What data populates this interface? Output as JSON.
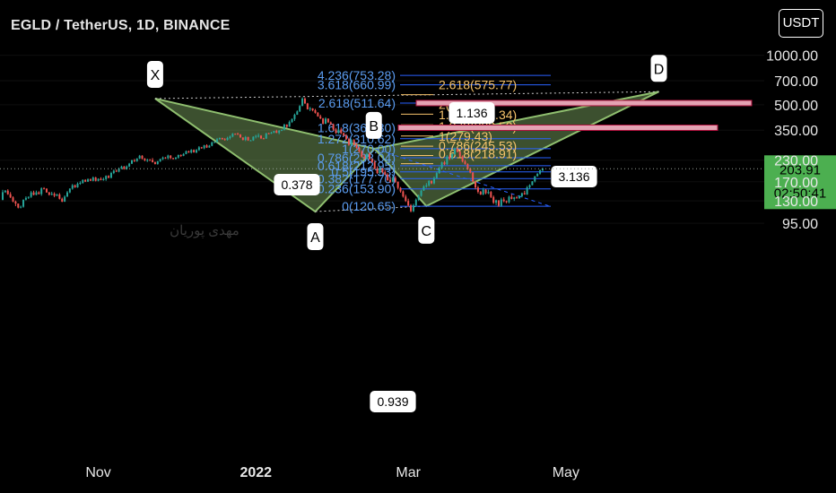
{
  "header": {
    "title": "EGLD / TetherUS, 1D, BINANCE",
    "unit_button": "USDT"
  },
  "watermark": "مهدی پوریان",
  "colors": {
    "background": "#000000",
    "pattern_fill": "#8fbf6f",
    "bull_candle": "#26a69a",
    "bear_candle": "#ef5350",
    "fib_blue_line": "#2962ff",
    "fib_blue_text": "#5b9cf0",
    "fib_gold_text": "#f6c36b",
    "zone_fill": "#e3a3b3",
    "zone_border": "#b0123f",
    "price_tag": "#4caf50"
  },
  "chart_data": {
    "type": "candlestick",
    "pair": "EGLD / TetherUS",
    "timeframe": "1D",
    "exchange": "BINANCE",
    "y_scale": "log",
    "yaxis_ticks": [
      "1000.00",
      "700.00",
      "500.00",
      "350.00",
      "230.00",
      "170.00",
      "130.00",
      "95.00"
    ],
    "xaxis_ticks": [
      "Nov",
      "2022",
      "Mar",
      "May"
    ],
    "last_price": "203.91",
    "countdown": "02:50:41",
    "pattern_points": [
      {
        "label": "X",
        "date": "2021-11-23",
        "price": 545
      },
      {
        "label": "A",
        "date": "2022-01-24",
        "price": 112
      },
      {
        "label": "B",
        "date": "2022-02-16",
        "price": 270
      },
      {
        "label": "C",
        "date": "2022-03-08",
        "price": 121
      },
      {
        "label": "D",
        "date": "2022-06-06",
        "price": 600
      }
    ],
    "pattern_ratios": [
      {
        "label": "0.378"
      },
      {
        "label": "0.939"
      },
      {
        "label": "3.136"
      },
      {
        "label": "1.136"
      }
    ],
    "fib_retracement_xa": [
      "4.236(753.28)",
      "3.618(660.99)",
      "2.618(511.64)",
      "1.618(362.30)",
      "1.272(310.62)",
      "1(270.00)",
      "0.786(238.04)",
      "0.618(212.95)",
      "0.5(195.33)",
      "0.382(177.70)",
      "0.236(153.90)",
      "0(120.65)"
    ],
    "fib_extension_bc": [
      "2.618(575.77)",
      "2(437.86)",
      "1.618(377.34)",
      "1.272(322.52)",
      "1(279.43)",
      "0.786(245.53)",
      "0.618(218.91)"
    ],
    "zones": [
      {
        "name": "upper",
        "price": 511.64
      },
      {
        "name": "lower",
        "price": 362.3
      }
    ],
    "candles": [
      [
        132.1,
        151.9,
        131.1,
        146.9
      ],
      [
        146.9,
        151.4,
        145.6,
        150.1
      ],
      [
        150.1,
        153.1,
        141.5,
        142.9
      ],
      [
        142.9,
        147.1,
        135.4,
        136.6
      ],
      [
        136.6,
        138.7,
        127.6,
        128.9
      ],
      [
        128.9,
        130.7,
        120.9,
        125.3
      ],
      [
        125.3,
        125.4,
        117.1,
        118.4
      ],
      [
        118.4,
        121.8,
        117.1,
        119.9
      ],
      [
        119.9,
        132.6,
        118.3,
        132.3
      ],
      [
        132.3,
        138.6,
        130.7,
        135.6
      ],
      [
        135.6,
        138.5,
        133.6,
        137.6
      ],
      [
        137.6,
        149.3,
        135.6,
        146.5
      ],
      [
        146.5,
        150.0,
        140.6,
        141.5
      ],
      [
        141.5,
        150.2,
        140.7,
        146.6
      ],
      [
        146.6,
        148.8,
        142.2,
        143.2
      ],
      [
        143.2,
        157.2,
        139.7,
        154.9
      ],
      [
        154.9,
        157.6,
        153.2,
        154.6
      ],
      [
        154.6,
        154.7,
        146.1,
        146.4
      ],
      [
        146.4,
        147.7,
        140.2,
        141.8
      ],
      [
        141.8,
        147.8,
        140.6,
        143.8
      ],
      [
        143.8,
        146.8,
        136.9,
        139.7
      ],
      [
        139.7,
        143.8,
        139.0,
        142.3
      ],
      [
        142.3,
        145.1,
        132.7,
        134.0
      ],
      [
        134.0,
        136.2,
        127.9,
        128.7
      ],
      [
        128.7,
        140.6,
        128.2,
        137.9
      ],
      [
        137.9,
        149.3,
        137.7,
        146.5
      ],
      [
        146.5,
        155.3,
        144.8,
        154.3
      ],
      [
        154.3,
        164.8,
        152.1,
        161.9
      ],
      [
        161.9,
        163.5,
        156.0,
        157.2
      ],
      [
        157.2,
        168.6,
        156.2,
        165.6
      ],
      [
        165.6,
        171.2,
        162.9,
        167.4
      ],
      [
        167.4,
        175.8,
        165.4,
        174.3
      ],
      [
        174.3,
        176.2,
        169.3,
        170.5
      ],
      [
        170.5,
        178.4,
        169.5,
        175.8
      ],
      [
        175.8,
        178.0,
        172.0,
        172.4
      ],
      [
        172.4,
        183.1,
        171.1,
        180.4
      ],
      [
        180.4,
        182.3,
        170.8,
        172.3
      ],
      [
        172.3,
        178.4,
        171.0,
        177.0
      ],
      [
        177.0,
        181.0,
        173.4,
        173.9
      ],
      [
        173.9,
        180.3,
        172.5,
        176.4
      ],
      [
        176.4,
        186.0,
        172.3,
        184.5
      ],
      [
        184.5,
        186.4,
        178.4,
        179.9
      ],
      [
        179.9,
        195.6,
        178.0,
        192.2
      ],
      [
        192.2,
        201.8,
        189.3,
        198.4
      ],
      [
        198.4,
        202.1,
        194.8,
        196.0
      ],
      [
        196.0,
        207.5,
        194.0,
        204.2
      ],
      [
        204.2,
        213.0,
        202.8,
        210.4
      ],
      [
        210.4,
        212.3,
        201.7,
        202.9
      ],
      [
        202.9,
        213.6,
        201.4,
        210.6
      ],
      [
        210.6,
        221.3,
        208.8,
        219.1
      ],
      [
        219.1,
        231.4,
        218.0,
        229.6
      ],
      [
        229.6,
        234.1,
        224.1,
        226.8
      ],
      [
        226.8,
        236.8,
        224.7,
        235.3
      ],
      [
        235.3,
        247.5,
        233.6,
        244.8
      ],
      [
        244.8,
        246.6,
        232.4,
        234.9
      ],
      [
        234.9,
        237.1,
        226.5,
        229.7
      ],
      [
        229.7,
        234.9,
        224.2,
        230.6
      ],
      [
        230.6,
        234.2,
        228.1,
        230.5
      ],
      [
        230.5,
        237.1,
        222.7,
        224.0
      ],
      [
        224.0,
        225.5,
        216.6,
        218.1
      ],
      [
        218.1,
        227.6,
        215.9,
        226.5
      ],
      [
        226.5,
        235.2,
        224.2,
        233.7
      ],
      [
        233.7,
        242.0,
        230.2,
        238.7
      ],
      [
        238.7,
        240.4,
        234.1,
        236.7
      ],
      [
        236.7,
        248.4,
        232.5,
        245.4
      ],
      [
        245.4,
        246.7,
        233.3,
        236.8
      ],
      [
        236.8,
        237.8,
        232.3,
        234.5
      ],
      [
        234.5,
        240.4,
        232.1,
        238.6
      ],
      [
        238.6,
        248.8,
        234.8,
        247.2
      ],
      [
        247.2,
        249.4,
        240.6,
        244.5
      ],
      [
        244.5,
        253.9,
        243.3,
        250.5
      ],
      [
        250.5,
        263.3,
        249.9,
        260.5
      ],
      [
        260.5,
        263.2,
        254.4,
        256.2
      ],
      [
        256.2,
        268.6,
        252.6,
        265.5
      ],
      [
        265.5,
        267.5,
        255.3,
        256.7
      ],
      [
        256.7,
        268.7,
        253.5,
        265.3
      ],
      [
        265.3,
        280.2,
        261.8,
        275.3
      ],
      [
        275.3,
        277.1,
        270.0,
        271.8
      ],
      [
        271.8,
        285.0,
        268.1,
        283.1
      ],
      [
        283.1,
        287.3,
        272.8,
        274.6
      ],
      [
        274.6,
        284.5,
        273.8,
        281.4
      ],
      [
        281.4,
        298.9,
        279.5,
        294.9
      ],
      [
        294.9,
        300.0,
        292.3,
        296.7
      ],
      [
        296.7,
        314.1,
        294.3,
        308.3
      ],
      [
        308.3,
        316.1,
        306.5,
        313.7
      ],
      [
        313.7,
        315.1,
        306.4,
        308.6
      ],
      [
        308.6,
        313.1,
        302.6,
        305.5
      ],
      [
        305.5,
        319.2,
        302.6,
        313.6
      ],
      [
        313.6,
        325.1,
        307.3,
        320.0
      ],
      [
        320.0,
        336.5,
        316.8,
        333.0
      ],
      [
        333.0,
        334.6,
        328.1,
        332.9
      ],
      [
        332.9,
        338.3,
        327.7,
        330.0
      ],
      [
        330.0,
        331.3,
        314.6,
        316.1
      ],
      [
        316.1,
        316.3,
        303.3,
        305.5
      ],
      [
        305.5,
        322.9,
        300.4,
        317.9
      ],
      [
        317.9,
        319.4,
        301.4,
        303.2
      ],
      [
        303.2,
        305.4,
        300.4,
        303.6
      ],
      [
        303.6,
        321.1,
        301.4,
        319.2
      ],
      [
        319.2,
        328.1,
        311.8,
        322.9
      ],
      [
        322.9,
        334.6,
        315.8,
        324.1
      ],
      [
        324.1,
        326.5,
        309.3,
        312.5
      ],
      [
        312.5,
        314.5,
        308.1,
        311.3
      ],
      [
        311.3,
        336.7,
        309.8,
        335.4
      ],
      [
        335.4,
        337.4,
        330.8,
        333.5
      ],
      [
        333.5,
        342.3,
        332.0,
        337.7
      ],
      [
        337.7,
        346.7,
        335.8,
        346.2
      ],
      [
        346.2,
        352.2,
        336.0,
        337.3
      ],
      [
        337.3,
        351.1,
        330.8,
        347.1
      ],
      [
        347.1,
        353.3,
        345.7,
        352.1
      ],
      [
        352.1,
        383.1,
        348.7,
        378.3
      ],
      [
        378.3,
        380.1,
        362.4,
        367.2
      ],
      [
        367.2,
        401.0,
        366.3,
        392.8
      ],
      [
        392.8,
        412.4,
        387.5,
        409.0
      ],
      [
        409.0,
        441.5,
        398.6,
        434.8
      ],
      [
        434.8,
        461.4,
        433.6,
        455.2
      ],
      [
        455.2,
        497.2,
        451.7,
        491.3
      ],
      [
        491.3,
        554.5,
        489.8,
        545.0
      ],
      [
        545.0,
        554.4,
        505.9,
        508.9
      ],
      [
        508.9,
        512.9,
        467.2,
        469.3
      ],
      [
        469.3,
        485.8,
        456.8,
        474.5
      ],
      [
        474.5,
        476.5,
        455.8,
        462.5
      ],
      [
        462.5,
        471.2,
        441.6,
        446.2
      ],
      [
        446.2,
        451.2,
        422.8,
        424.7
      ],
      [
        424.7,
        434.8,
        408.9,
        412.1
      ],
      [
        412.1,
        415.3,
        379.2,
        383.2
      ],
      [
        383.2,
        419.3,
        380.6,
        411.0
      ],
      [
        411.0,
        413.1,
        387.3,
        390.9
      ],
      [
        390.9,
        395.4,
        377.8,
        380.0
      ],
      [
        380.0,
        384.1,
        347.1,
        353.7
      ],
      [
        353.7,
        361.1,
        332.4,
        337.0
      ],
      [
        337.0,
        357.4,
        332.4,
        353.0
      ],
      [
        353.0,
        362.8,
        331.5,
        336.1
      ],
      [
        336.1,
        339.0,
        320.8,
        324.9
      ],
      [
        324.9,
        331.0,
        305.7,
        309.1
      ],
      [
        309.1,
        314.8,
        281.1,
        285.3
      ],
      [
        285.3,
        310.6,
        281.3,
        305.0
      ],
      [
        305.0,
        309.1,
        282.4,
        286.6
      ],
      [
        286.6,
        293.1,
        269.9,
        273.7
      ],
      [
        273.7,
        277.6,
        255.2,
        259.9
      ],
      [
        259.9,
        264.5,
        238.5,
        240.6
      ],
      [
        240.6,
        249.1,
        233.9,
        234.5
      ],
      [
        234.5,
        255.6,
        232.0,
        251.5
      ],
      [
        251.5,
        255.5,
        230.0,
        233.2
      ],
      [
        233.2,
        235.9,
        221.4,
        223.6
      ],
      [
        223.6,
        230.0,
        202.4,
        204.5
      ],
      [
        204.5,
        211.0,
        189.7,
        192.2
      ],
      [
        192.2,
        210.7,
        190.1,
        204.7
      ],
      [
        204.7,
        205.9,
        190.8,
        195.0
      ],
      [
        195.0,
        200.1,
        186.2,
        187.9
      ],
      [
        187.9,
        191.6,
        172.4,
        173.8
      ],
      [
        173.8,
        179.9,
        167.4,
        170.2
      ],
      [
        170.2,
        183.0,
        168.3,
        179.4
      ],
      [
        179.4,
        184.1,
        167.6,
        170.2
      ],
      [
        170.2,
        170.5,
        152.6,
        156.1
      ],
      [
        156.1,
        158.0,
        146.0,
        148.6
      ],
      [
        148.6,
        150.8,
        136.2,
        138.3
      ],
      [
        138.3,
        141.9,
        128.2,
        129.9
      ],
      [
        129.9,
        134.2,
        119.9,
        122.1
      ],
      [
        122.1,
        124.5,
        110.9,
        112.7
      ],
      [
        112.7,
        124.9,
        111.2,
        122.1
      ],
      [
        122.1,
        134.6,
        120.2,
        132.2
      ],
      [
        132.2,
        142.2,
        129.9,
        139.5
      ],
      [
        139.5,
        152.1,
        137.8,
        150.2
      ],
      [
        150.2,
        162.0,
        149.6,
        159.2
      ],
      [
        159.2,
        166.9,
        156.4,
        161.7
      ],
      [
        161.7,
        174.1,
        158.9,
        171.9
      ],
      [
        171.9,
        173.4,
        164.5,
        166.3
      ],
      [
        166.3,
        182.9,
        164.0,
        179.0
      ],
      [
        179.0,
        195.5,
        176.9,
        192.0
      ],
      [
        192.0,
        210.0,
        190.1,
        205.8
      ],
      [
        205.8,
        225.3,
        204.6,
        223.0
      ],
      [
        223.0,
        227.5,
        214.5,
        217.2
      ],
      [
        217.2,
        247.2,
        214.6,
        242.3
      ],
      [
        242.3,
        248.0,
        230.9,
        234.4
      ],
      [
        234.4,
        253.0,
        232.3,
        250.7
      ],
      [
        250.7,
        274.3,
        247.7,
        270.2
      ],
      [
        270.2,
        271.0,
        256.2,
        259.3
      ],
      [
        259.3,
        260.7,
        239.0,
        242.6
      ],
      [
        242.6,
        246.2,
        222.7,
        226.0
      ],
      [
        226.0,
        231.3,
        215.8,
        218.2
      ],
      [
        218.2,
        220.2,
        200.4,
        204.2
      ],
      [
        204.2,
        206.7,
        191.3,
        193.3
      ],
      [
        193.3,
        194.7,
        168.9,
        170.8
      ],
      [
        170.8,
        172.4,
        153.1,
        156.9
      ],
      [
        156.9,
        160.5,
        144.4,
        147.8
      ],
      [
        147.8,
        149.5,
        141.3,
        142.2
      ],
      [
        142.2,
        156.2,
        141.0,
        152.2
      ],
      [
        152.2,
        153.6,
        142.6,
        144.9
      ],
      [
        144.9,
        152.2,
        143.0,
        147.4
      ],
      [
        147.4,
        149.4,
        135.3,
        137.3
      ],
      [
        137.3,
        140.1,
        124.6,
        126.8
      ],
      [
        126.8,
        132.5,
        122.6,
        131.2
      ],
      [
        131.2,
        131.4,
        119.6,
        121.5
      ],
      [
        121.5,
        136.0,
        119.7,
        132.7
      ],
      [
        132.7,
        136.8,
        127.5,
        129.6
      ],
      [
        129.6,
        130.8,
        125.7,
        127.8
      ],
      [
        127.8,
        140.0,
        125.6,
        137.8
      ],
      [
        137.8,
        143.0,
        132.9,
        133.7
      ],
      [
        133.7,
        137.7,
        130.0,
        136.6
      ],
      [
        136.6,
        139.2,
        134.2,
        135.4
      ],
      [
        135.4,
        140.9,
        133.6,
        138.7
      ],
      [
        138.7,
        146.2,
        136.4,
        144.7
      ],
      [
        144.7,
        149.8,
        141.9,
        142.3
      ],
      [
        142.3,
        160.4,
        141.4,
        157.2
      ],
      [
        157.2,
        164.1,
        154.1,
        162.2
      ],
      [
        162.2,
        171.6,
        161.6,
        171.0
      ],
      [
        171.0,
        184.3,
        168.4,
        183.7
      ],
      [
        183.7,
        191.4,
        182.9,
        190.6
      ],
      [
        190.6,
        202.0,
        187.8,
        199.6
      ],
      [
        199.6,
        206.9,
        196.3,
        203.9
      ]
    ]
  }
}
